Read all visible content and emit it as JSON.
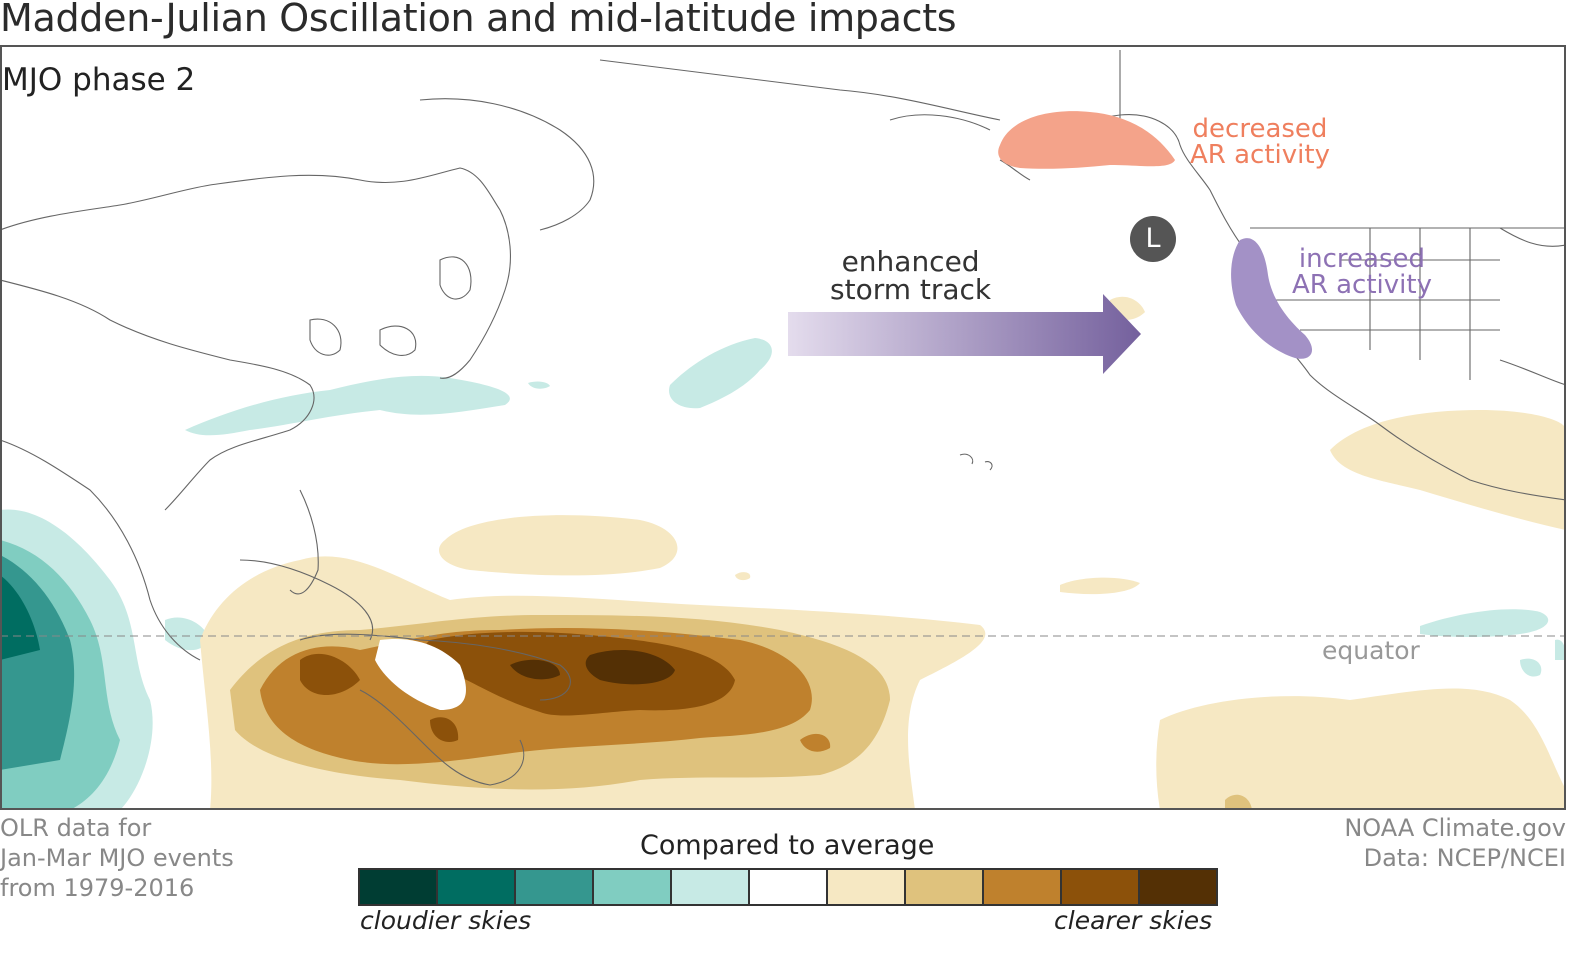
{
  "title": "Madden-Julian Oscillation and mid-latitude impacts",
  "phase_label": "MJO phase 2",
  "annotations": {
    "decreased": [
      "decreased",
      "AR activity"
    ],
    "increased": [
      "increased",
      "AR activity"
    ],
    "storm_track": [
      "enhanced",
      "storm track"
    ],
    "low_pressure": "L",
    "equator": "equator"
  },
  "footer_left": [
    "OLR data for",
    "Jan-Mar MJO events",
    "from 1979-2016"
  ],
  "footer_right": [
    "NOAA Climate.gov",
    "Data: NCEP/NCEI"
  ],
  "legend": {
    "title": "Compared to average",
    "left_label": "cloudier skies",
    "right_label": "clearer skies",
    "colors": [
      "#003d33",
      "#006d61",
      "#35978f",
      "#80cdc1",
      "#c7eae5",
      "#ffffff",
      "#f6e8c3",
      "#dfc27d",
      "#bf812d",
      "#8c510a",
      "#543005"
    ]
  },
  "colors": {
    "decreased": "#f4a38a",
    "decreased_text": "#ef7f5e",
    "increased": "#a391c6",
    "increased_text": "#8d71b4",
    "arrow_start": "#e4dced",
    "arrow_end": "#74609d"
  }
}
